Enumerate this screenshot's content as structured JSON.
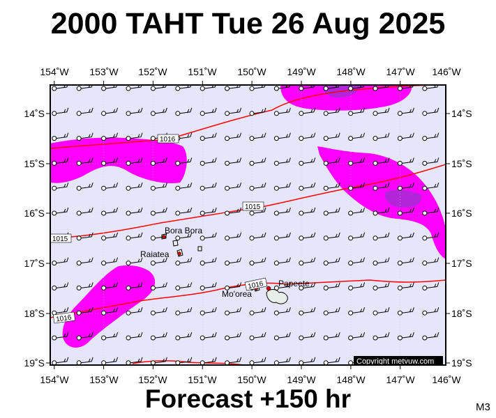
{
  "header": {
    "title": "2000 TAHT Tue 26 Aug 2025"
  },
  "footer": {
    "forecast": "Forecast +150 hr",
    "code": "M3",
    "copyright": "Copyright metvuw.com"
  },
  "map": {
    "lon_labels": [
      "154˚W",
      "153˚W",
      "152˚W",
      "151˚W",
      "150˚W",
      "149˚W",
      "148˚W",
      "147˚W",
      "146˚W"
    ],
    "lat_labels": [
      "14˚S",
      "15˚S",
      "16˚S",
      "17˚S",
      "18˚S",
      "19˚S"
    ],
    "places": [
      {
        "name": "Bora Bora"
      },
      {
        "name": "Raiatea"
      },
      {
        "name": "Mo'orea"
      },
      {
        "name": "Papeete"
      }
    ],
    "isobar_labels": [
      "1016",
      "1015",
      "1015",
      "1016",
      "1016"
    ],
    "colors": {
      "background": "#e6e6fa",
      "precip_light": "#ff00ff",
      "precip_heavy": "#9932cc",
      "isobar": "#ff0000",
      "land": "#e8eee8"
    }
  }
}
